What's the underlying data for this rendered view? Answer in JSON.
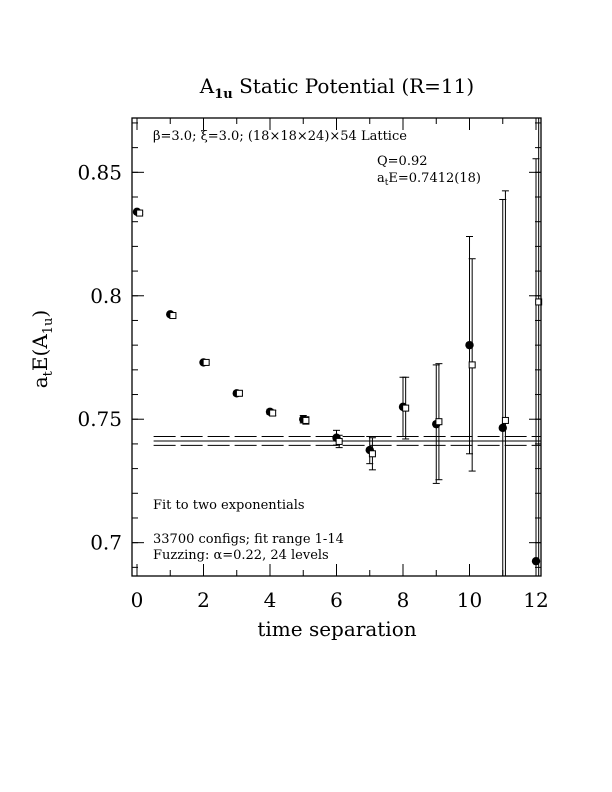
{
  "chart_data": {
    "type": "scatter",
    "title": "A",
    "title_sub": "1u",
    "title_rest": " Static Potential (R=11)",
    "xlabel": "time separation",
    "ylabel_pre": "a",
    "ylabel_sub1": "t",
    "ylabel_mid": "E(A",
    "ylabel_sub2": "1u",
    "ylabel_post": ")",
    "xlim": [
      -0.15,
      12.15
    ],
    "ylim": [
      0.6865,
      0.872
    ],
    "xticks": [
      0,
      2,
      4,
      6,
      8,
      10,
      12
    ],
    "xtick_labels": [
      "0",
      "2",
      "4",
      "6",
      "8",
      "10",
      "12"
    ],
    "yticks": [
      0.7,
      0.75,
      0.8,
      0.85
    ],
    "ytick_labels": [
      "0.7",
      "0.75",
      "0.8",
      "0.85"
    ],
    "grid": false,
    "annotations": {
      "lattice": "β=3.0; ξ=3.0; (18×18×24)×54 Lattice",
      "q": "Q=0.92",
      "energy_pre": "a",
      "energy_sub": "t",
      "energy_rest": "E=0.7412(18)",
      "fit": "Fit to two exponentials",
      "configs": "33700 configs; fit range 1-14",
      "fuzzing": "Fuzzing: α=0.22, 24 levels"
    },
    "fit": {
      "value": 0.7412,
      "error": 0.0018,
      "x_range": [
        0.5,
        12.15
      ]
    },
    "series": [
      {
        "marker": "filled-circle",
        "points": [
          {
            "x": 0,
            "y": 0.834,
            "err": 0.0005
          },
          {
            "x": 1,
            "y": 0.7925,
            "err": 0.0005
          },
          {
            "x": 2,
            "y": 0.773,
            "err": 0.0006
          },
          {
            "x": 3,
            "y": 0.7605,
            "err": 0.0008
          },
          {
            "x": 4,
            "y": 0.753,
            "err": 0.001
          },
          {
            "x": 5,
            "y": 0.75,
            "err": 0.0015
          },
          {
            "x": 6,
            "y": 0.7425,
            "err": 0.003
          },
          {
            "x": 7,
            "y": 0.7375,
            "err": 0.0055
          },
          {
            "x": 8,
            "y": 0.755,
            "err": 0.012
          },
          {
            "x": 9,
            "y": 0.748,
            "err": 0.024
          },
          {
            "x": 10,
            "y": 0.78,
            "err": 0.044
          },
          {
            "x": 11,
            "y": 0.7465,
            "err": 0.0925
          },
          {
            "x": 12,
            "y": 0.6925,
            "err": 0.163
          }
        ]
      },
      {
        "marker": "open-square",
        "points": [
          {
            "x": 0.08,
            "y": 0.8335,
            "err": 0.0005
          },
          {
            "x": 1.08,
            "y": 0.792,
            "err": 0.0005
          },
          {
            "x": 2.08,
            "y": 0.773,
            "err": 0.0006
          },
          {
            "x": 3.08,
            "y": 0.7605,
            "err": 0.0008
          },
          {
            "x": 4.08,
            "y": 0.7525,
            "err": 0.001
          },
          {
            "x": 5.08,
            "y": 0.7495,
            "err": 0.0015
          },
          {
            "x": 6.08,
            "y": 0.741,
            "err": 0.0025
          },
          {
            "x": 7.08,
            "y": 0.736,
            "err": 0.0065
          },
          {
            "x": 8.08,
            "y": 0.7545,
            "err": 0.0125
          },
          {
            "x": 9.08,
            "y": 0.749,
            "err": 0.0235
          },
          {
            "x": 10.08,
            "y": 0.772,
            "err": 0.043
          },
          {
            "x": 11.08,
            "y": 0.7495,
            "err": 0.093
          },
          {
            "x": 12.08,
            "y": 0.7975,
            "err": 0.12
          }
        ]
      }
    ]
  }
}
